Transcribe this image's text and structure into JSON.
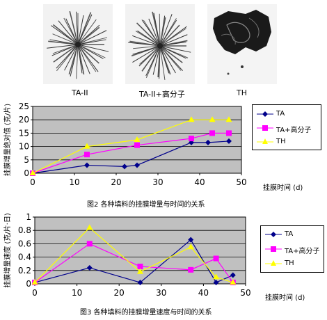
{
  "photos": [
    {
      "label": "TA-II",
      "icon": "radial-fiber-filler-icon"
    },
    {
      "label": "TA-II+高分子",
      "icon": "radial-fiber-filler-polymer-icon"
    },
    {
      "label": "TH",
      "icon": "dark-clump-filler-icon"
    }
  ],
  "colors": {
    "TA": "#00008b",
    "TA+高分子": "#ff00ff",
    "TH": "#ffff00",
    "plot_bg": "#c0c0c0"
  },
  "figure2": {
    "caption": "图2  各种填料的挂膜增量与时间的关系"
  },
  "figure3": {
    "caption": "图3  各种填料的挂膜增量速度与时间的关系"
  },
  "chart_data": [
    {
      "type": "line",
      "xlabel": "挂膜时间 (d)",
      "ylabel": "挂膜增量绝对值 (克/片)",
      "xlim": [
        0,
        50
      ],
      "ylim": [
        0,
        25
      ],
      "xticks": [
        "0",
        "10",
        "20",
        "30",
        "40",
        "50"
      ],
      "yticks": [
        "0",
        "5",
        "10",
        "15",
        "20",
        "25"
      ],
      "grid": true,
      "legend_position": "right",
      "series": [
        {
          "name": "TA",
          "marker": "diamond",
          "x": [
            0,
            13,
            22,
            25,
            38,
            42,
            47
          ],
          "y": [
            0,
            3,
            2.5,
            3,
            11.5,
            11.5,
            12
          ]
        },
        {
          "name": "TA+高分子",
          "marker": "square",
          "x": [
            0,
            13,
            25,
            38,
            43,
            47
          ],
          "y": [
            0,
            7,
            10.5,
            13,
            15,
            15
          ]
        },
        {
          "name": "TH",
          "marker": "triangle",
          "x": [
            0,
            13,
            25,
            38,
            43,
            47
          ],
          "y": [
            0,
            10,
            12.5,
            20,
            20,
            20
          ]
        }
      ]
    },
    {
      "type": "line",
      "xlabel": "挂膜时间 (d)",
      "ylabel": "挂膜增量速度 (克/片·日)",
      "xlim": [
        0,
        50
      ],
      "ylim": [
        0,
        1
      ],
      "xticks": [
        "0",
        "10",
        "20",
        "30",
        "40",
        "50"
      ],
      "yticks": [
        "0",
        "0.2",
        "0.4",
        "0.6",
        "0.8",
        "1"
      ],
      "grid": true,
      "legend_position": "right",
      "series": [
        {
          "name": "TA",
          "marker": "diamond",
          "x": [
            0,
            13,
            25,
            37,
            43,
            47
          ],
          "y": [
            0.02,
            0.24,
            0.02,
            0.66,
            0.02,
            0.13
          ]
        },
        {
          "name": "TA+高分子",
          "marker": "square",
          "x": [
            0,
            13,
            25,
            37,
            43,
            47
          ],
          "y": [
            0.02,
            0.6,
            0.26,
            0.21,
            0.38,
            0.02
          ]
        },
        {
          "name": "TH",
          "marker": "triangle",
          "x": [
            0,
            13,
            25,
            37,
            43,
            47
          ],
          "y": [
            0.02,
            0.84,
            0.18,
            0.55,
            0.1,
            0.02
          ]
        }
      ]
    }
  ]
}
